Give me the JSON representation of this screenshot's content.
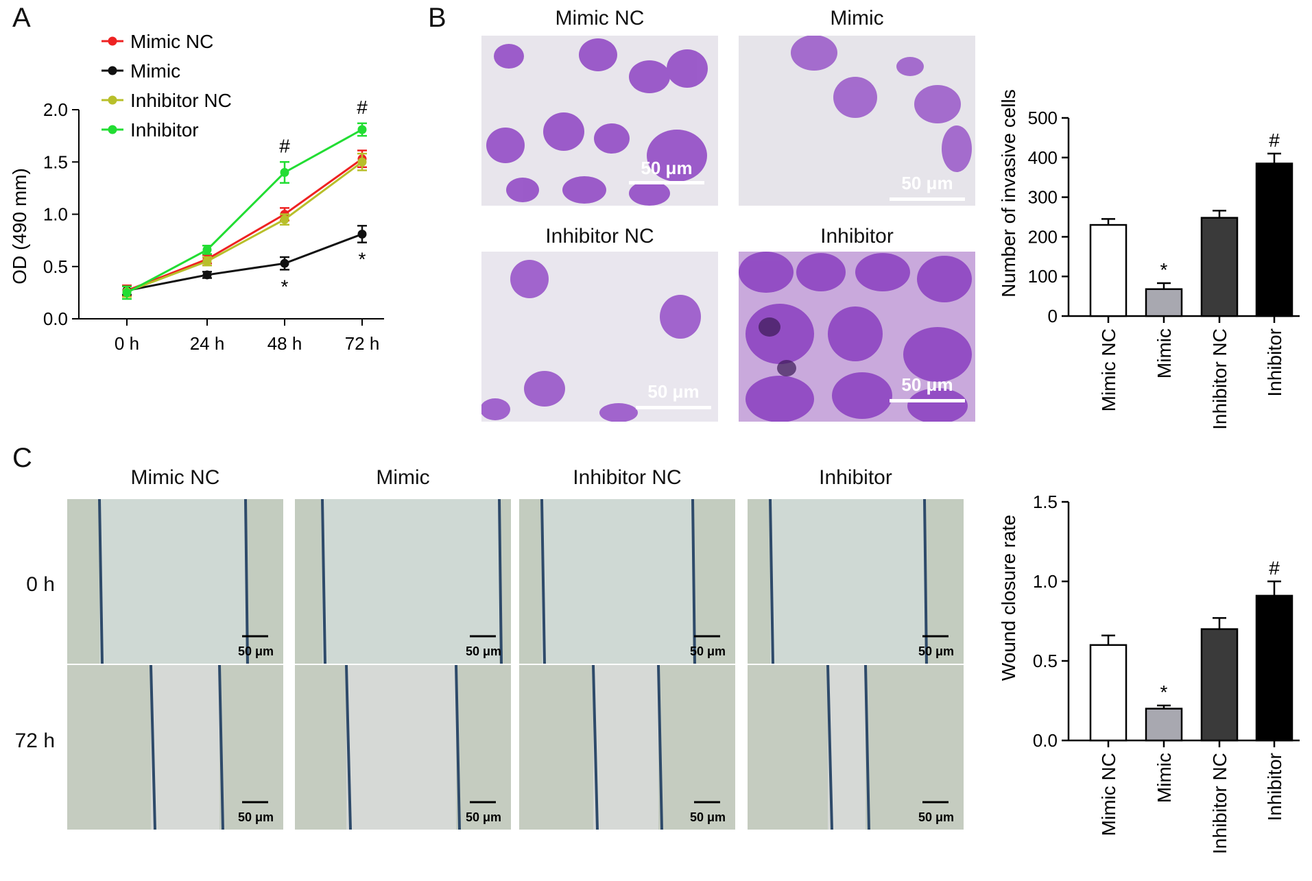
{
  "panels": {
    "a": "A",
    "b": "B",
    "c": "C"
  },
  "colors": {
    "mimic_nc": "#ee2222",
    "mimic": "#111111",
    "inhibitor_nc": "#b8bf2a",
    "inhibitor": "#22dd33",
    "stain_purple": "#8a3fc0",
    "field_bg": "#e9e6ee",
    "wound_bg": "#c9d6d4",
    "bar_white": "#ffffff",
    "bar_gray": "#a8a8b0",
    "bar_dark": "#3a3a3a",
    "bar_black": "#000000"
  },
  "panel_b": {
    "titles": [
      "Mimic NC",
      "Mimic",
      "Inhibitor NC",
      "Inhibitor"
    ],
    "scale_label": "50 μm"
  },
  "panel_c": {
    "titles": [
      "Mimic NC",
      "Mimic",
      "Inhibitor NC",
      "Inhibitor"
    ],
    "rows": [
      "0 h",
      "72 h"
    ],
    "scale_label": "50 μm"
  },
  "chart_data": [
    {
      "type": "line",
      "ylabel": "OD (490 mm)",
      "xlabel": "",
      "categories": [
        "0 h",
        "24 h",
        "48 h",
        "72 h"
      ],
      "ylim": [
        0,
        2.0
      ],
      "yticks": [
        "0.0",
        "0.5",
        "1.0",
        "1.5",
        "2.0"
      ],
      "legend_position": "top-left",
      "series": [
        {
          "name": "Mimic NC",
          "values": [
            0.27,
            0.57,
            1.0,
            1.53
          ],
          "err": [
            0.05,
            0.04,
            0.06,
            0.08
          ]
        },
        {
          "name": "Mimic",
          "values": [
            0.27,
            0.42,
            0.53,
            0.81
          ],
          "err": [
            0.04,
            0.03,
            0.06,
            0.08
          ]
        },
        {
          "name": "Inhibitor NC",
          "values": [
            0.26,
            0.55,
            0.95,
            1.5
          ],
          "err": [
            0.05,
            0.04,
            0.05,
            0.08
          ]
        },
        {
          "name": "Inhibitor",
          "values": [
            0.25,
            0.66,
            1.4,
            1.81
          ],
          "err": [
            0.06,
            0.04,
            0.1,
            0.06
          ]
        }
      ],
      "annotations": [
        {
          "text": "#",
          "category": "48 h",
          "position": "above"
        },
        {
          "text": "#",
          "category": "72 h",
          "position": "above"
        },
        {
          "text": "*",
          "category": "48 h",
          "position": "below"
        },
        {
          "text": "*",
          "category": "72 h",
          "position": "below"
        }
      ]
    },
    {
      "type": "bar",
      "ylabel": "Number of invasive cells",
      "xlabel": "",
      "categories": [
        "Mimic NC",
        "Mimic",
        "Inhibitor NC",
        "Inhibitor"
      ],
      "values": [
        230,
        68,
        248,
        385
      ],
      "err": [
        15,
        15,
        18,
        25
      ],
      "ylim": [
        0,
        500
      ],
      "yticks": [
        "0",
        "100",
        "200",
        "300",
        "400",
        "500"
      ],
      "marks": [
        "",
        "*",
        "",
        "#"
      ]
    },
    {
      "type": "bar",
      "ylabel": "Wound closure rate",
      "xlabel": "",
      "categories": [
        "Mimic NC",
        "Mimic",
        "Inhibitor NC",
        "Inhibitor"
      ],
      "values": [
        0.6,
        0.2,
        0.7,
        0.91
      ],
      "err": [
        0.06,
        0.02,
        0.07,
        0.09
      ],
      "ylim": [
        0,
        1.5
      ],
      "yticks": [
        "0.0",
        "0.5",
        "1.0",
        "1.5"
      ],
      "marks": [
        "",
        "*",
        "",
        "#"
      ]
    }
  ]
}
